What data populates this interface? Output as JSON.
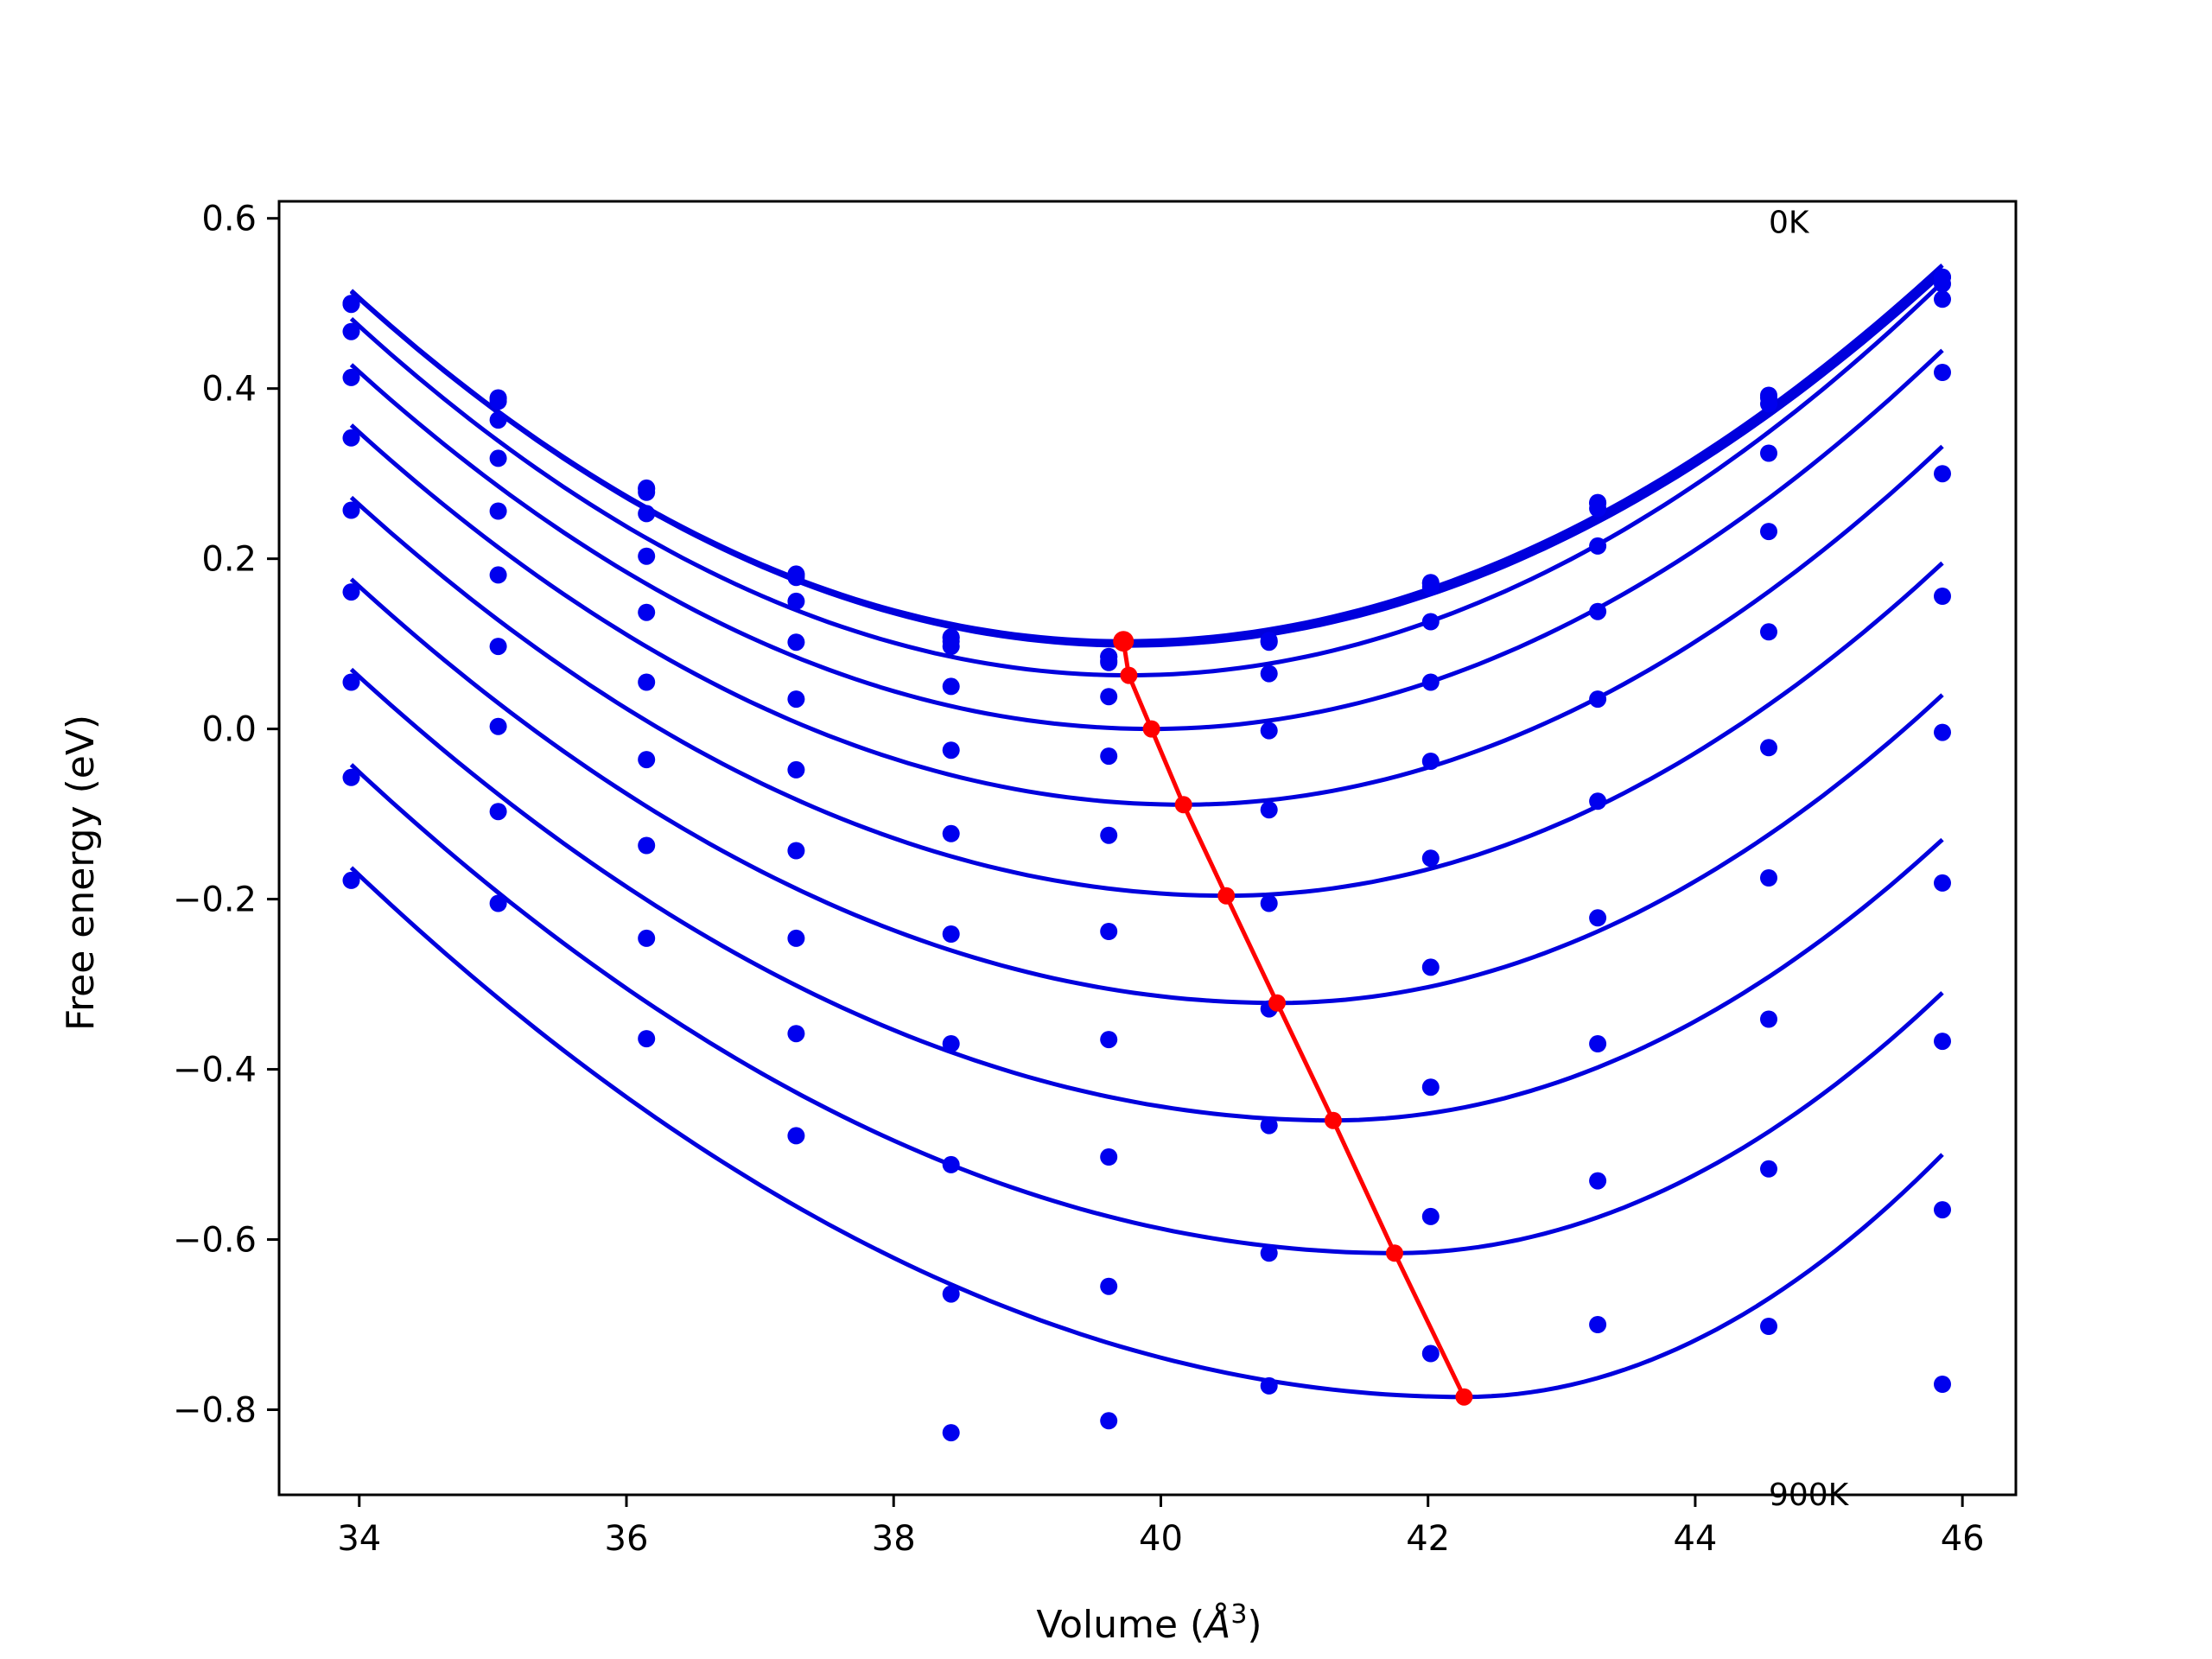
{
  "chart_data": {
    "type": "scatter",
    "title": "",
    "xlabel": "Volume (Å³)",
    "xlabel_main": "Volume (",
    "xlabel_unit": "Å",
    "xlabel_exp": "3",
    "xlabel_close": ")",
    "ylabel": "Free energy (eV)",
    "xlim": [
      33.4,
      46.4
    ],
    "ylim": [
      -0.9,
      0.62
    ],
    "xticks": [
      34,
      36,
      38,
      40,
      42,
      44,
      46
    ],
    "xtick_labels": [
      "34",
      "36",
      "38",
      "40",
      "42",
      "44",
      "46"
    ],
    "yticks": [
      -0.8,
      -0.6,
      -0.4,
      -0.2,
      0.0,
      0.2,
      0.4,
      0.6
    ],
    "ytick_labels": [
      "−0.8",
      "−0.6",
      "−0.4",
      "−0.2",
      "0.0",
      "0.2",
      "0.4",
      "0.6"
    ],
    "grid": false,
    "annotations": [
      {
        "text": "0K",
        "x": 44.55,
        "y": 0.595
      },
      {
        "text": "900K",
        "x": 44.55,
        "y": -0.9
      }
    ],
    "x": [
      33.94,
      35.04,
      36.15,
      37.27,
      38.43,
      39.61,
      40.81,
      42.02,
      43.27,
      44.55,
      45.85
    ],
    "fit_x_range": [
      33.94,
      45.85
    ],
    "series": [
      {
        "values": [
          0.5,
          0.389,
          0.283,
          0.182,
          0.108,
          0.085,
          0.104,
          0.172,
          0.266,
          0.392,
          0.531
        ],
        "min_v": 39.72,
        "min_f": 0.103,
        "right_end": 0.545
      },
      {
        "values": [
          0.5,
          0.388,
          0.282,
          0.181,
          0.107,
          0.085,
          0.103,
          0.171,
          0.265,
          0.389,
          0.531
        ],
        "min_v": 39.72,
        "min_f": 0.101,
        "right_end": 0.54
      },
      {
        "values": [
          0.499,
          0.385,
          0.278,
          0.178,
          0.103,
          0.08,
          0.102,
          0.167,
          0.259,
          0.382,
          0.523
        ],
        "min_v": 39.76,
        "min_f": 0.098,
        "right_end": 0.535
      },
      {
        "values": [
          0.467,
          0.363,
          0.253,
          0.15,
          0.097,
          0.078,
          0.065,
          0.126,
          0.215,
          0.324,
          0.505
        ],
        "min_v": 39.76,
        "min_f": 0.063,
        "right_end": 0.525
      },
      {
        "values": [
          0.413,
          0.318,
          0.203,
          0.102,
          0.05,
          0.038,
          -0.002,
          0.055,
          0.138,
          0.232,
          0.419
        ],
        "min_v": 39.93,
        "min_f": 0.0,
        "right_end": 0.445
      },
      {
        "values": [
          0.342,
          0.256,
          0.137,
          0.035,
          -0.025,
          -0.032,
          -0.095,
          -0.038,
          0.035,
          0.114,
          0.3
        ],
        "min_v": 40.17,
        "min_f": -0.089,
        "right_end": 0.332
      },
      {
        "values": [
          0.257,
          0.181,
          0.055,
          -0.048,
          -0.123,
          -0.125,
          -0.205,
          -0.152,
          -0.085,
          -0.022,
          0.156
        ],
        "min_v": 40.49,
        "min_f": -0.196,
        "right_end": 0.195
      },
      {
        "values": [
          0.161,
          0.097,
          -0.036,
          -0.143,
          -0.241,
          -0.238,
          -0.329,
          -0.28,
          -0.222,
          -0.175,
          -0.004
        ],
        "min_v": 40.87,
        "min_f": -0.322,
        "right_end": 0.04
      },
      {
        "values": [
          0.055,
          0.003,
          -0.137,
          -0.246,
          -0.37,
          -0.365,
          -0.466,
          -0.421,
          -0.37,
          -0.341,
          -0.181
        ],
        "min_v": 41.29,
        "min_f": -0.46,
        "right_end": -0.13
      },
      {
        "values": [
          -0.057,
          -0.097,
          -0.246,
          -0.358,
          -0.512,
          -0.503,
          -0.616,
          -0.573,
          -0.531,
          -0.517,
          -0.367
        ],
        "min_v": 41.75,
        "min_f": -0.616,
        "right_end": -0.31
      },
      {
        "values": [
          -0.178,
          -0.205,
          -0.364,
          -0.478,
          -0.664,
          -0.655,
          -0.772,
          -0.734,
          -0.7,
          -0.702,
          -0.565
        ],
        "min_v": 42.27,
        "min_f": -0.785,
        "right_end": -0.5
      },
      {
        "values": [
          null,
          null,
          null,
          null,
          -0.827,
          -0.813,
          null,
          null,
          null,
          null,
          -0.77
        ],
        "min_v": null,
        "min_f": null,
        "right_end": -0.7
      }
    ],
    "minima_line": {
      "x": [
        39.72,
        39.76,
        39.93,
        40.17,
        40.49,
        40.87,
        41.29,
        41.75,
        42.27
      ],
      "y": [
        0.103,
        0.063,
        0.0,
        -0.089,
        -0.196,
        -0.322,
        -0.46,
        -0.616,
        -0.785
      ]
    },
    "colors": {
      "points": "#0000ee",
      "curves": "#0000dd",
      "minima": "#ff0000",
      "frame": "#000000"
    }
  }
}
